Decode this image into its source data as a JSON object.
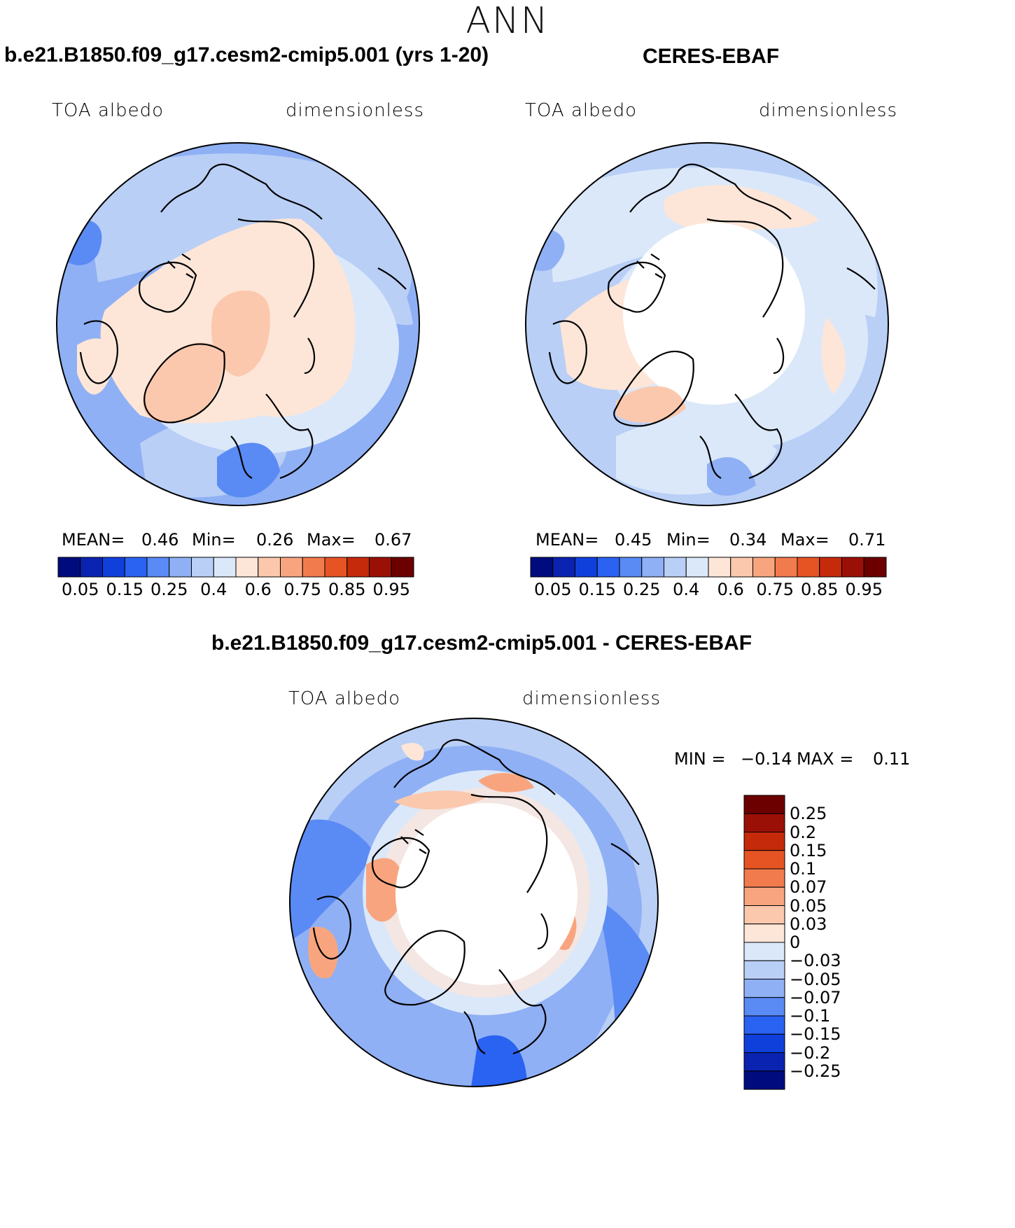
{
  "figure": {
    "season": "ANN",
    "panel_model": {
      "title": "b.e21.B1850.f09_g17.cesm2-cmip5.001 (yrs 1-20)",
      "variable": "TOA albedo",
      "units": "dimensionless",
      "mean_label": "MEAN=",
      "mean_value": "0.46",
      "min_label": "Min=",
      "min_value": "0.26",
      "max_label": "Max=",
      "max_value": "0.67"
    },
    "panel_obs": {
      "title": "CERES-EBAF",
      "variable": "TOA albedo",
      "units": "dimensionless",
      "mean_label": "MEAN=",
      "mean_value": "0.45",
      "min_label": "Min=",
      "min_value": "0.34",
      "max_label": "Max=",
      "max_value": "0.71"
    },
    "panel_diff": {
      "title": "b.e21.B1850.f09_g17.cesm2-cmip5.001 - CERES-EBAF",
      "variable": "TOA albedo",
      "units": "dimensionless",
      "min_label": "MIN =",
      "min_value": "−0.14",
      "max_label": "MAX =",
      "max_value": "0.11"
    }
  },
  "colorbar_abs": {
    "colors": [
      "#000c7d",
      "#0a23b0",
      "#1040dc",
      "#2a62f2",
      "#5a8af4",
      "#8fb0f5",
      "#b9cff6",
      "#dbe8fa",
      "#fde6d8",
      "#fbc8ae",
      "#f8a57f",
      "#f27b4d",
      "#e65424",
      "#c52a0a",
      "#9b1006",
      "#6c0000"
    ],
    "labels": [
      "0.05",
      "0.15",
      "0.25",
      "0.4",
      "0.6",
      "0.75",
      "0.85",
      "0.95"
    ]
  },
  "colorbar_diff": {
    "colors": [
      "#000c7d",
      "#0a23b0",
      "#1040dc",
      "#2a62f2",
      "#5a8af4",
      "#8fb0f5",
      "#b9cff6",
      "#dbe8fa",
      "#fde6d8",
      "#fbc8ae",
      "#f8a57f",
      "#f27b4d",
      "#e65424",
      "#c52a0a",
      "#9b1006",
      "#6c0000"
    ],
    "labels": [
      "0.25",
      "0.2",
      "0.15",
      "0.1",
      "0.07",
      "0.05",
      "0.03",
      "0",
      "−0.03",
      "−0.05",
      "−0.07",
      "−0.1",
      "−0.15",
      "−0.2",
      "−0.25"
    ]
  },
  "map_colors": {
    "ocean_light": "#dbe8fa",
    "ocean_mid": "#b9cff6",
    "ocean_blue": "#8fb0f5",
    "ice_pale": "#fde6d8",
    "ice_salmon": "#fbc8ae",
    "missing": "#ffffff",
    "warm": "#f27b4d",
    "cool": "#5a8af4",
    "deep": "#2a62f2"
  }
}
